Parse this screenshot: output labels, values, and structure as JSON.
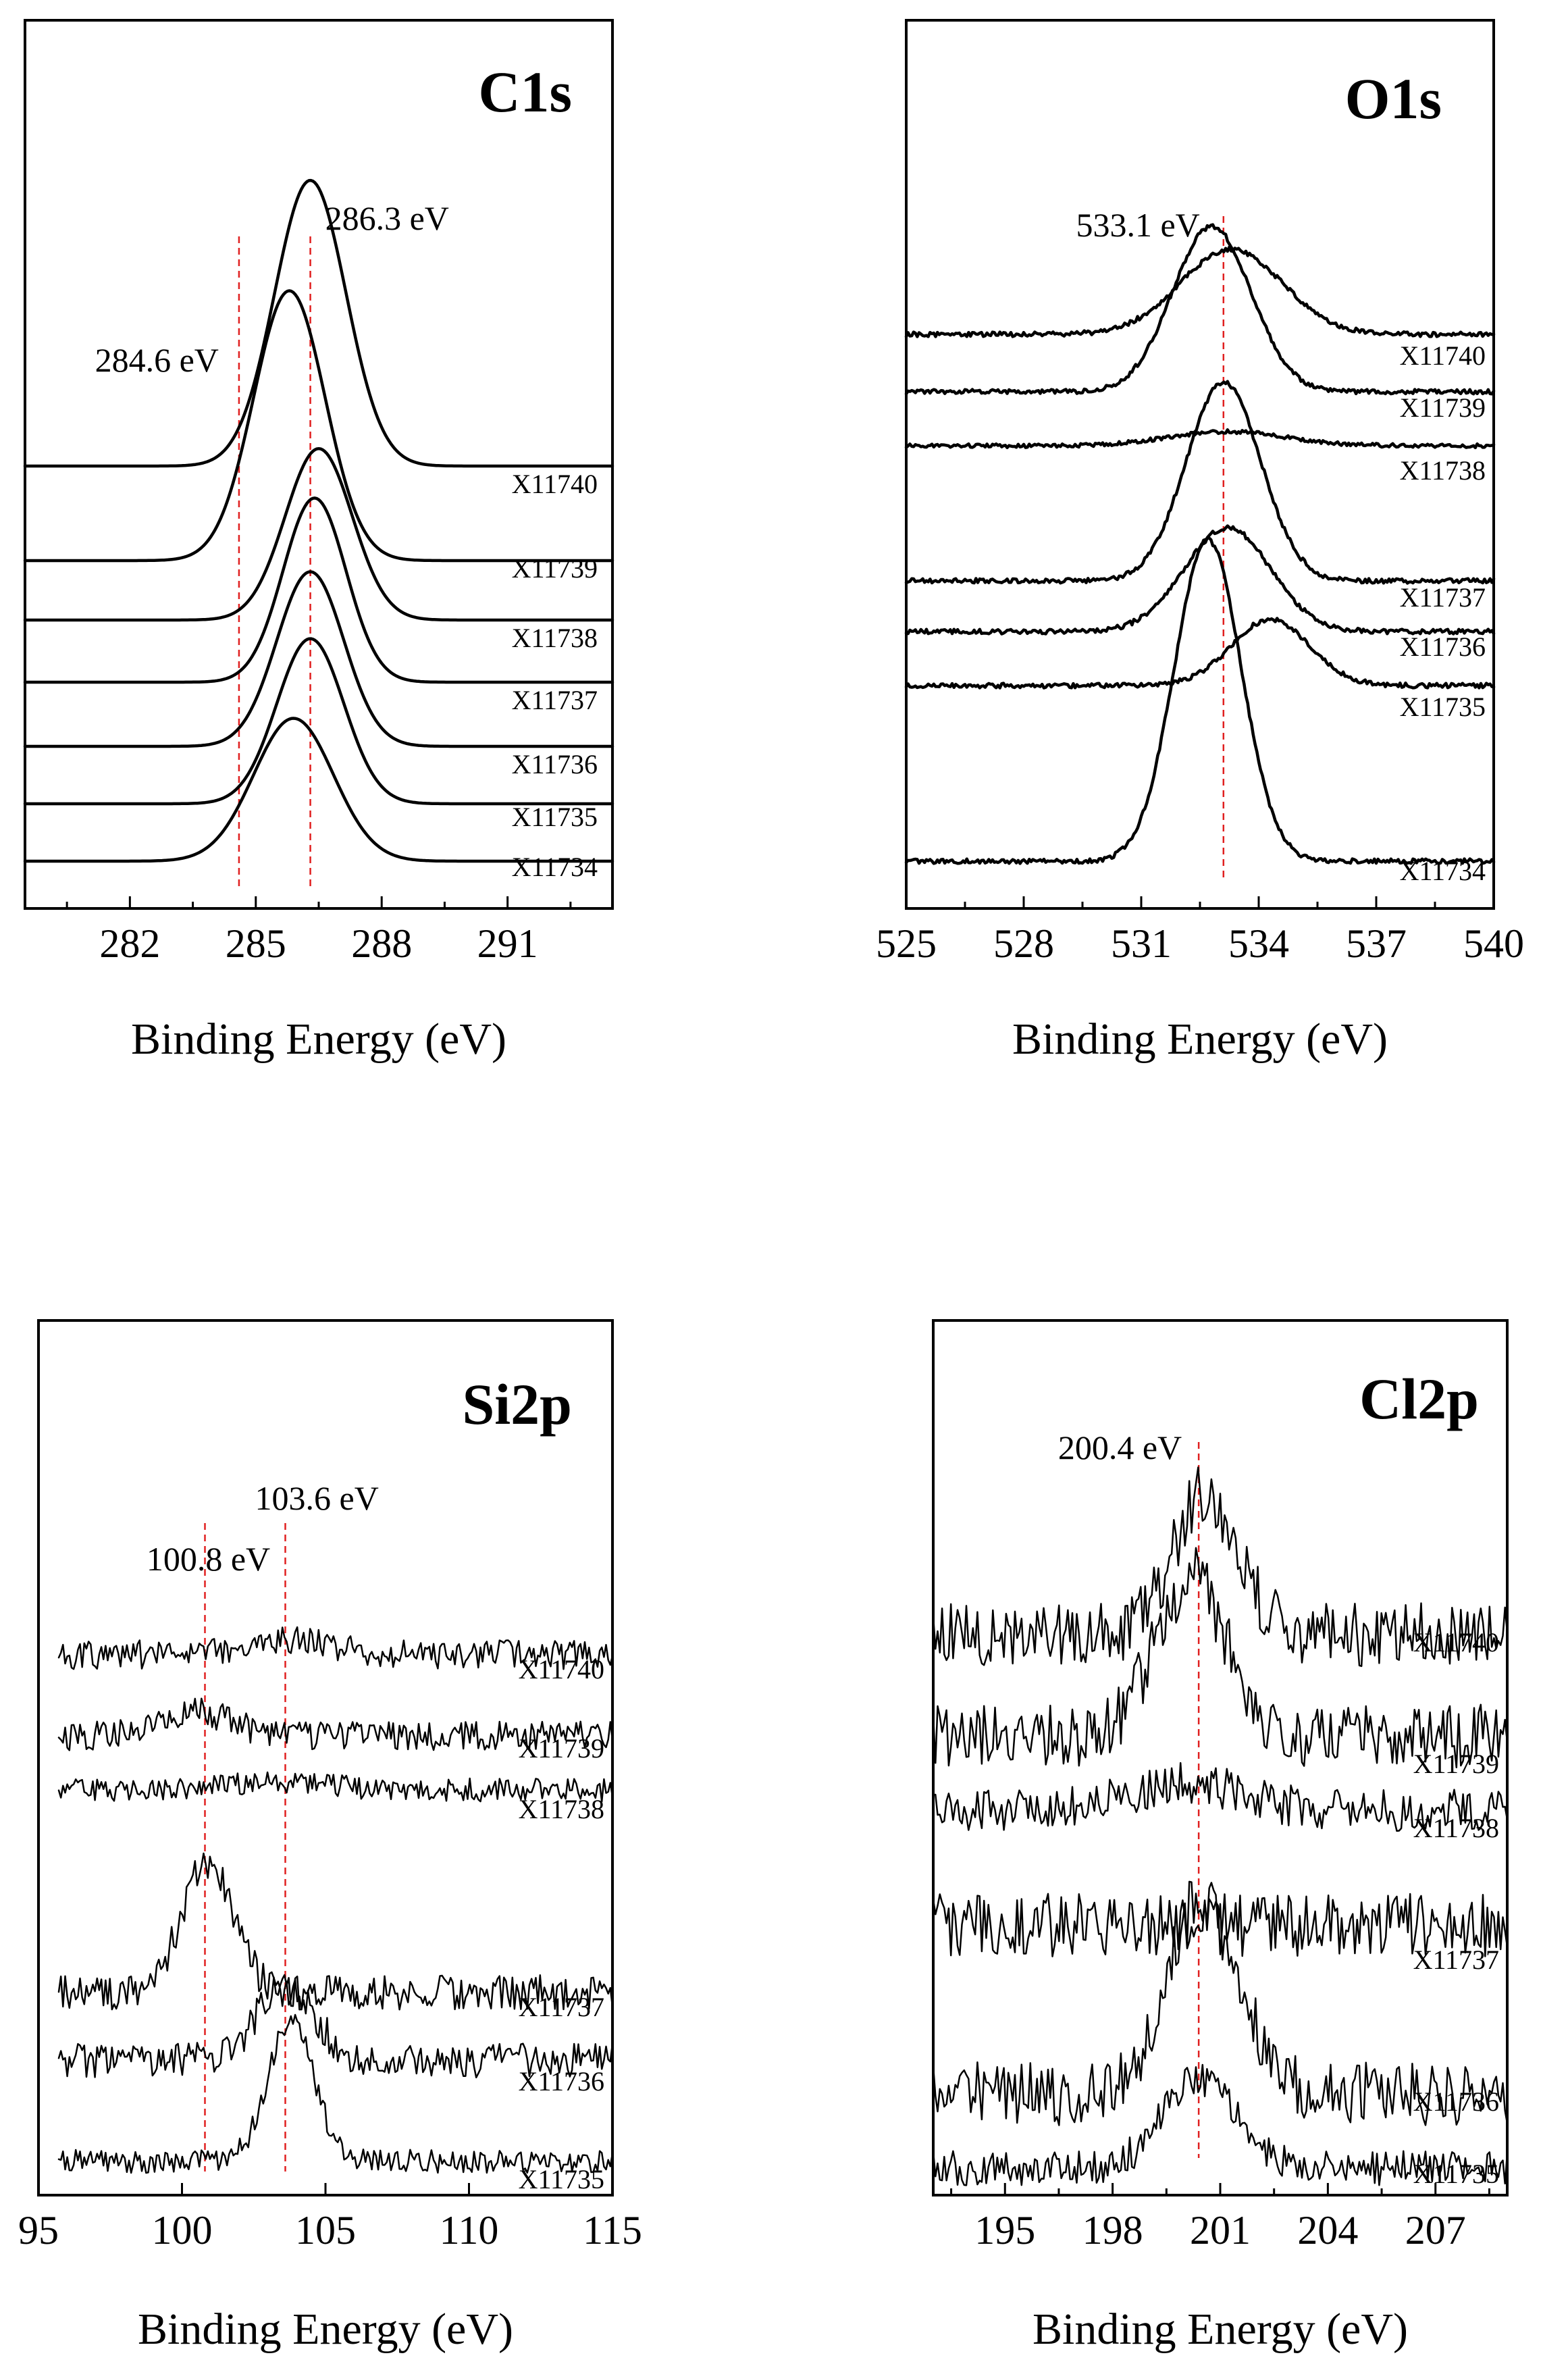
{
  "figure": {
    "background": "#ffffff",
    "line_color": "#000000",
    "reference_line_color": "#e02020"
  },
  "chart_data": [
    {
      "id": "c1s",
      "type": "line",
      "title": "C1s",
      "xlabel": "Binding Energy (eV)",
      "ylabel": "",
      "xlim": [
        279.5,
        293.5
      ],
      "xticks": [
        282,
        285,
        288,
        291
      ],
      "reference_lines": [
        {
          "x": 284.6,
          "label": "284.6 eV"
        },
        {
          "x": 286.3,
          "label": "286.3 eV"
        }
      ],
      "series": [
        {
          "name": "X11740",
          "baseline": 0.5,
          "peaks": [
            [
              286.3,
              0.9,
              0.85
            ]
          ],
          "noise": 0.0
        },
        {
          "name": "X11739",
          "baseline": 0.3,
          "peaks": [
            [
              285.8,
              0.85,
              0.85
            ]
          ],
          "noise": 0.0
        },
        {
          "name": "X11738",
          "baseline": 0.38,
          "peaks": [
            [
              286.5,
              0.54,
              0.8
            ]
          ],
          "noise": 0.0
        },
        {
          "name": "X11737",
          "baseline": 0.3,
          "peaks": [
            [
              286.4,
              0.58,
              0.75
            ]
          ],
          "noise": 0.0
        },
        {
          "name": "X11736",
          "baseline": 0.22,
          "peaks": [
            [
              286.3,
              0.55,
              0.8
            ]
          ],
          "noise": 0.0
        },
        {
          "name": "X11735",
          "baseline": 0.15,
          "peaks": [
            [
              286.3,
              0.52,
              0.8
            ]
          ],
          "noise": 0.0
        },
        {
          "name": "X11734",
          "baseline": 0.1,
          "peaks": [
            [
              285.9,
              0.45,
              0.95
            ]
          ],
          "noise": 0.0
        }
      ]
    },
    {
      "id": "o1s",
      "type": "line",
      "title": "O1s",
      "xlabel": "Binding Energy (eV)",
      "ylabel": "",
      "xlim": [
        525,
        540
      ],
      "xticks": [
        525,
        528,
        531,
        534,
        537,
        540
      ],
      "reference_lines": [
        {
          "x": 533.1,
          "label": "533.1 eV"
        }
      ],
      "series": [
        {
          "name": "X11740",
          "baseline": 0.5,
          "peaks": [
            [
              533.3,
              0.18,
              1.3
            ]
          ],
          "noise": 0.005
        },
        {
          "name": "X11739",
          "baseline": 0.4,
          "peaks": [
            [
              532.8,
              0.35,
              1.0
            ]
          ],
          "noise": 0.005
        },
        {
          "name": "X11738",
          "baseline": 0.35,
          "peaks": [
            [
              533.2,
              0.03,
              1.5
            ]
          ],
          "noise": 0.004
        },
        {
          "name": "X11737",
          "baseline": 0.1,
          "peaks": [
            [
              533.1,
              0.42,
              0.95
            ]
          ],
          "noise": 0.005
        },
        {
          "name": "X11736",
          "baseline": 0.08,
          "peaks": [
            [
              533.2,
              0.22,
              1.1
            ]
          ],
          "noise": 0.005
        },
        {
          "name": "X11735",
          "baseline": 0.06,
          "peaks": [
            [
              534.3,
              0.14,
              1.0
            ]
          ],
          "noise": 0.005
        },
        {
          "name": "X11734",
          "baseline": 0.06,
          "peaks": [
            [
              532.7,
              0.68,
              0.85
            ]
          ],
          "noise": 0.005
        }
      ]
    },
    {
      "id": "si2p",
      "type": "line",
      "title": "Si2p",
      "xlabel": "Binding Energy (eV)",
      "ylabel": "",
      "xlim": [
        95,
        115
      ],
      "xticks": [
        95,
        100,
        105,
        110,
        115
      ],
      "reference_lines": [
        {
          "x": 100.8,
          "label": "100.8 eV"
        },
        {
          "x": 103.6,
          "label": "103.6 eV"
        }
      ],
      "series": [
        {
          "name": "X11740",
          "baseline": 0.5,
          "peaks": [
            [
              103.6,
              0.05,
              1.5
            ]
          ],
          "noise": 0.05
        },
        {
          "name": "X11739",
          "baseline": 0.45,
          "peaks": [
            [
              100.5,
              0.08,
              1.2
            ]
          ],
          "noise": 0.05
        },
        {
          "name": "X11738",
          "baseline": 0.38,
          "peaks": [
            [
              103.5,
              0.03,
              1.5
            ]
          ],
          "noise": 0.04
        },
        {
          "name": "X11737",
          "baseline": 0.25,
          "peaks": [
            [
              100.9,
              0.45,
              0.9
            ]
          ],
          "noise": 0.06
        },
        {
          "name": "X11736",
          "baseline": 0.25,
          "peaks": [
            [
              103.6,
              0.25,
              1.0
            ]
          ],
          "noise": 0.06
        },
        {
          "name": "X11735",
          "baseline": 0.15,
          "peaks": [
            [
              103.8,
              0.48,
              0.8
            ]
          ],
          "noise": 0.04
        }
      ]
    },
    {
      "id": "cl2p",
      "type": "line",
      "title": "Cl2p",
      "xlabel": "Binding Energy (eV)",
      "ylabel": "",
      "xlim": [
        193,
        209
      ],
      "xticks": [
        195,
        198,
        201,
        204,
        207
      ],
      "reference_lines": [
        {
          "x": 200.4,
          "label": "200.4 eV"
        }
      ],
      "series": [
        {
          "name": "X11740",
          "baseline": 0.5,
          "peaks": [
            [
              200.6,
              0.4,
              0.9
            ]
          ],
          "noise": 0.09
        },
        {
          "name": "X11739",
          "baseline": 0.5,
          "peaks": [
            [
              200.2,
              0.45,
              1.0
            ]
          ],
          "noise": 0.09
        },
        {
          "name": "X11738",
          "baseline": 0.45,
          "peaks": [
            [
              200.0,
              0.08,
              1.5
            ]
          ],
          "noise": 0.06
        },
        {
          "name": "X11737",
          "baseline": 0.45,
          "peaks": [],
          "noise": 0.09
        },
        {
          "name": "X11736",
          "baseline": 0.3,
          "peaks": [
            [
              200.5,
              0.55,
              1.0
            ]
          ],
          "noise": 0.09
        },
        {
          "name": "X11735",
          "baseline": 0.35,
          "peaks": [
            [
              200.4,
              0.25,
              1.0
            ]
          ],
          "noise": 0.05
        }
      ]
    }
  ]
}
